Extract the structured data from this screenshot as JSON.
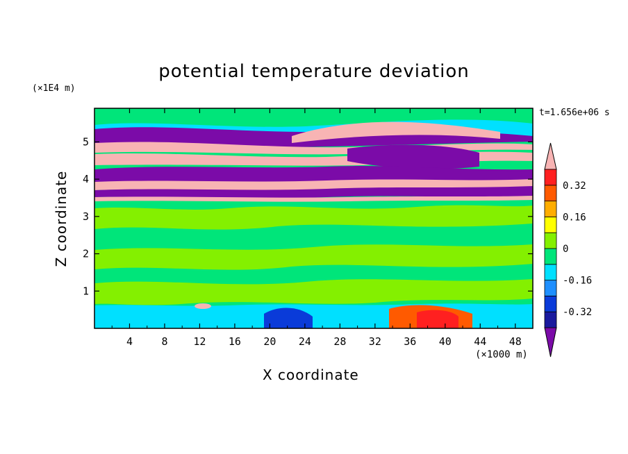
{
  "chart_data": {
    "type": "heatmap",
    "title": "potential temperature deviation",
    "xlabel": "X coordinate",
    "ylabel": "Z coordinate",
    "x_unit": "(×1000 m)",
    "y_unit": "(×1E4 m)",
    "time_label": "t=1.656e+06 s",
    "xlim": [
      0,
      50
    ],
    "ylim": [
      0,
      5.9
    ],
    "x_ticks": [
      4,
      8,
      12,
      16,
      20,
      24,
      28,
      32,
      36,
      40,
      44,
      48
    ],
    "x_tick_labels": [
      "4",
      "8",
      "12",
      "16",
      "20",
      "24",
      "28",
      "32",
      "36",
      "40",
      "44",
      "48"
    ],
    "y_ticks": [
      1,
      2,
      3,
      4,
      5
    ],
    "y_tick_labels": [
      "1",
      "2",
      "3",
      "4",
      "5"
    ],
    "colorbar": {
      "levels": [
        -0.4,
        -0.32,
        -0.24,
        -0.16,
        -0.08,
        0,
        0.08,
        0.16,
        0.24,
        0.32,
        0.4
      ],
      "tick_values": [
        -0.32,
        -0.16,
        0,
        0.16,
        0.32
      ],
      "tick_labels": [
        "-0.32",
        "-0.16",
        "0",
        "0.16",
        "0.32"
      ],
      "colors": [
        "#7b0ba8",
        "#1a1a9e",
        "#0a3bd9",
        "#1e8fff",
        "#00e0ff",
        "#00e57a",
        "#84f000",
        "#ffff00",
        "#ffad00",
        "#ff5a00",
        "#ff2020",
        "#f8b4b4"
      ],
      "extend": "both"
    },
    "bands": [
      {
        "z_min": 0.0,
        "z_max": 0.6,
        "value": 0.04
      },
      {
        "z_min": 0.6,
        "z_max": 3.5,
        "value": 0.03
      },
      {
        "z_min": 3.55,
        "z_max": 3.75,
        "value": -0.45
      },
      {
        "z_min": 3.75,
        "z_max": 4.0,
        "value": 0.45
      },
      {
        "z_min": 4.0,
        "z_max": 4.3,
        "value": -0.45
      },
      {
        "z_min": 4.3,
        "z_max": 4.75,
        "value": 0.45
      },
      {
        "z_min": 4.8,
        "z_max": 5.0,
        "value": -0.45
      },
      {
        "z_min": 5.0,
        "z_max": 5.3,
        "value": 0.45
      },
      {
        "z_min": 5.3,
        "z_max": 5.55,
        "value": -0.45
      },
      {
        "z_min": 5.55,
        "z_max": 5.9,
        "value": 0.02
      }
    ]
  }
}
